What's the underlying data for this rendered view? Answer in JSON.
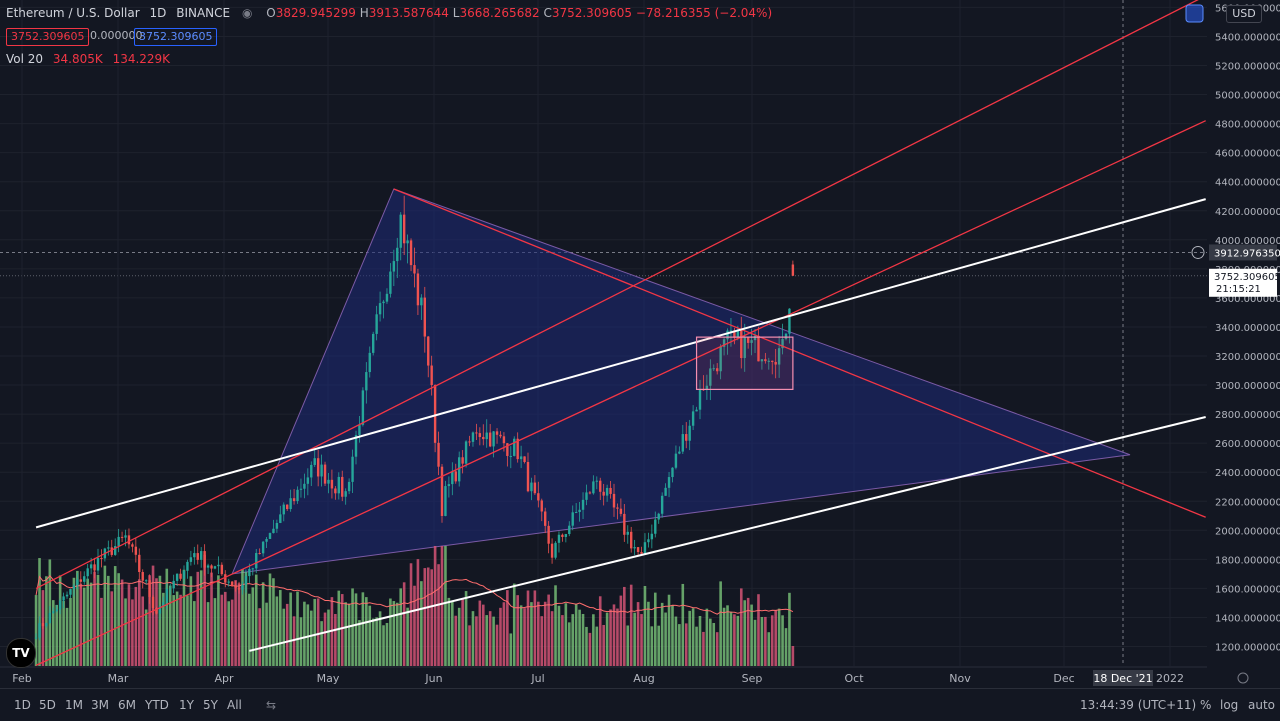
{
  "legend": {
    "symbol": "Ethereum / U.S. Dollar",
    "interval": "1D",
    "exchange": "BINANCE",
    "open_key": "O",
    "open": "3829.945299",
    "high_key": "H",
    "high": "3913.587644",
    "low_key": "L",
    "low": "3668.265682",
    "close_key": "C",
    "close": "3752.309605",
    "change": "−78.216355 (−2.04%)",
    "bid": "3752.309605",
    "spread": "0.000000",
    "ask": "3752.309605",
    "vol_label": "Vol 20",
    "vol_value": "34.805K",
    "vol_ma": "134.229K"
  },
  "price_axis": {
    "currency": "USD",
    "ticks": [
      "5600.000000",
      "5400.000000",
      "5200.000000",
      "5000.000000",
      "4800.000000",
      "4600.000000",
      "4400.000000",
      "4200.000000",
      "4000.000000",
      "3800.000000",
      "3600.000000",
      "3400.000000",
      "3200.000000",
      "3000.000000",
      "2800.000000",
      "2600.000000",
      "2400.000000",
      "2200.000000",
      "2000.000000",
      "1800.000000",
      "1600.000000",
      "1400.000000",
      "1200.000000"
    ],
    "crosshair_price": "3912.976350",
    "last_price": "3752.309605",
    "countdown": "21:15:21"
  },
  "time_axis": {
    "labels": [
      "Feb",
      "Mar",
      "Apr",
      "May",
      "Jun",
      "Jul",
      "Aug",
      "Sep",
      "Oct",
      "Nov",
      "Dec",
      "2022"
    ],
    "crosshair_date": "18 Dec '21"
  },
  "bottom_bar": {
    "ranges": [
      "1D",
      "5D",
      "1M",
      "3M",
      "6M",
      "YTD",
      "1Y",
      "5Y",
      "All"
    ],
    "clock": "13:44:39 (UTC+11)",
    "percent": "%",
    "log": "log",
    "auto": "auto"
  },
  "colors": {
    "background": "#131722",
    "up": "#26a69a",
    "down": "#ef5350",
    "vol_up": "#7bc67b",
    "vol_down": "#e0577a",
    "pattern_fill": "#1e2a78",
    "red_line": "#f23645",
    "white_line": "#ffffff"
  },
  "chart_data": {
    "type": "candlestick",
    "title": "Ethereum / U.S. Dollar",
    "interval": "1D",
    "ylim": [
      1100,
      5650
    ],
    "price_keypoints": [
      [
        "2021-01-25",
        1300
      ],
      [
        "2021-02-10",
        1750
      ],
      [
        "2021-02-20",
        1950
      ],
      [
        "2021-03-01",
        1450
      ],
      [
        "2021-03-12",
        1850
      ],
      [
        "2021-03-25",
        1600
      ],
      [
        "2021-04-05",
        2050
      ],
      [
        "2021-04-16",
        2450
      ],
      [
        "2021-04-25",
        2250
      ],
      [
        "2021-05-03",
        3300
      ],
      [
        "2021-05-11",
        4150
      ],
      [
        "2021-05-18",
        3400
      ],
      [
        "2021-05-23",
        2200
      ],
      [
        "2021-06-02",
        2700
      ],
      [
        "2021-06-14",
        2550
      ],
      [
        "2021-06-24",
        1850
      ],
      [
        "2021-07-07",
        2350
      ],
      [
        "2021-07-20",
        1800
      ],
      [
        "2021-07-30",
        2500
      ],
      [
        "2021-08-07",
        3000
      ],
      [
        "2021-08-14",
        3300
      ],
      [
        "2021-08-24",
        3250
      ],
      [
        "2021-08-30",
        3230
      ],
      [
        "2021-09-02",
        3780
      ]
    ],
    "last_candle": {
      "open": 3829.945299,
      "high": 3913.587644,
      "low": 3668.265682,
      "close": 3752.309605
    },
    "volume_ma_last": 134229,
    "volume_last": 34805,
    "drawings": {
      "triangle": [
        [
          "2021-05-09",
          4350
        ],
        [
          "2021-12-09",
          2520
        ],
        [
          "2021-03-23",
          1700
        ]
      ],
      "red_lines": [
        [
          [
            "2021-01-25",
            1600
          ],
          [
            "2021-12-31",
            5680
          ]
        ],
        [
          [
            "2021-01-25",
            1070
          ],
          [
            "2021-12-31",
            4820
          ]
        ],
        [
          [
            "2021-05-09",
            4350
          ],
          [
            "2021-12-31",
            2090
          ]
        ]
      ],
      "white_lines": [
        [
          [
            "2021-01-25",
            2020
          ],
          [
            "2021-12-31",
            4280
          ]
        ],
        [
          [
            "2021-03-28",
            1170
          ],
          [
            "2021-12-31",
            2780
          ]
        ]
      ],
      "box": {
        "from": "2021-08-05",
        "to": "2021-09-02",
        "low": 2970,
        "high": 3330
      }
    }
  }
}
